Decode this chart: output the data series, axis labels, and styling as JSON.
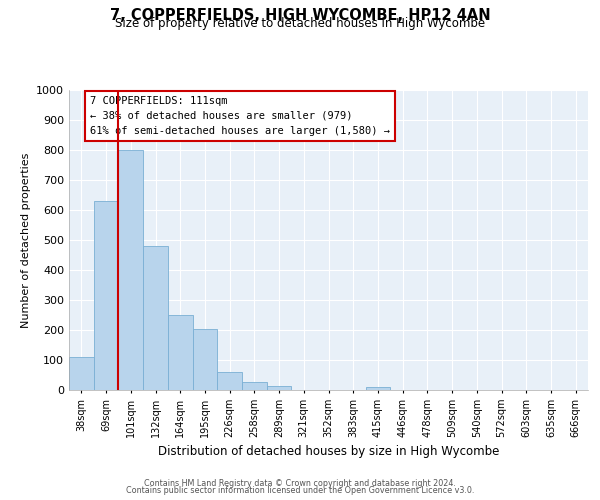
{
  "title": "7, COPPERFIELDS, HIGH WYCOMBE, HP12 4AN",
  "subtitle": "Size of property relative to detached houses in High Wycombe",
  "xlabel": "Distribution of detached houses by size in High Wycombe",
  "ylabel": "Number of detached properties",
  "bar_labels": [
    "38sqm",
    "69sqm",
    "101sqm",
    "132sqm",
    "164sqm",
    "195sqm",
    "226sqm",
    "258sqm",
    "289sqm",
    "321sqm",
    "352sqm",
    "383sqm",
    "415sqm",
    "446sqm",
    "478sqm",
    "509sqm",
    "540sqm",
    "572sqm",
    "603sqm",
    "635sqm",
    "666sqm"
  ],
  "bar_values": [
    110,
    630,
    800,
    480,
    250,
    205,
    60,
    28,
    15,
    0,
    0,
    0,
    10,
    0,
    0,
    0,
    0,
    0,
    0,
    0,
    0
  ],
  "bar_color": "#b8d4ec",
  "bar_edge_color": "#7aafd4",
  "bg_color": "#e8f0f8",
  "grid_color": "#ffffff",
  "vline_x": 1.5,
  "vline_color": "#cc0000",
  "ylim": [
    0,
    1000
  ],
  "yticks": [
    0,
    100,
    200,
    300,
    400,
    500,
    600,
    700,
    800,
    900,
    1000
  ],
  "annotation_title": "7 COPPERFIELDS: 111sqm",
  "annotation_line1": "← 38% of detached houses are smaller (979)",
  "annotation_line2": "61% of semi-detached houses are larger (1,580) →",
  "annotation_box_color": "#ffffff",
  "annotation_box_edge": "#cc0000",
  "footer1": "Contains HM Land Registry data © Crown copyright and database right 2024.",
  "footer2": "Contains public sector information licensed under the Open Government Licence v3.0."
}
